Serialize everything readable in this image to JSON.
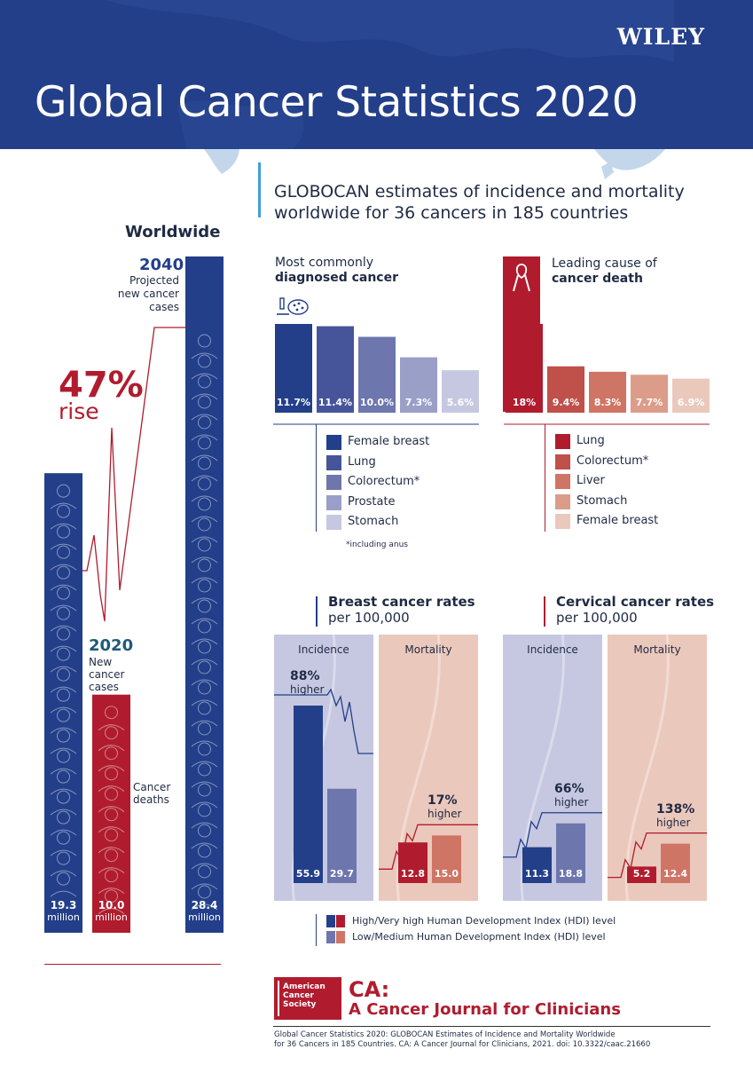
{
  "header": {
    "brand": "WILEY",
    "title": "Global Cancer Statistics 2020"
  },
  "subtitle": "GLOBOCAN estimates of incidence and mortality worldwide for 36 cancers in 185 countries",
  "worldwide": {
    "heading": "Worldwide",
    "year_2040": "2040",
    "projected_label": "Projected new cancer cases",
    "rise_pct": "47%",
    "rise_word": "rise",
    "year_2020": "2020",
    "new_cases_label": "New cancer cases",
    "deaths_label": "Cancer deaths",
    "unit": "million",
    "colors": {
      "blue": "#233f8a",
      "red": "#b01c2e"
    }
  },
  "legend_hdi": {
    "high": "High/Very high Human Development Index (HDI) level",
    "low": "Low/Medium Human Development Index (HDI) level"
  },
  "footnote_anus": "*including anus",
  "journal": {
    "society": "American Cancer Society",
    "ca": "CA:",
    "name": "A Cancer Journal for Clinicians",
    "citation_line1": "Global Cancer Statistics 2020: GLOBOCAN Estimates of Incidence and Mortality Worldwide",
    "citation_line2": "for 36 Cancers in 185 Countries. CA: A Cancer Journal for Clinicians, 2021. doi: 10.3322/caac.21660"
  },
  "chart_data": [
    {
      "type": "bar",
      "title": "Worldwide",
      "categories": [
        "2020 New cancer cases",
        "Cancer deaths",
        "2040 Projected new cancer cases"
      ],
      "values": [
        19.3,
        10.0,
        28.4
      ],
      "value_labels": [
        "19.3",
        "10.0",
        "28.4"
      ],
      "unit": "million",
      "annotation": "47% rise"
    },
    {
      "type": "bar",
      "title_line1": "Most commonly",
      "title_line2": "diagnosed cancer",
      "categories": [
        "Female breast",
        "Lung",
        "Colorectum*",
        "Prostate",
        "Stomach"
      ],
      "values": [
        11.7,
        11.4,
        10.0,
        7.3,
        5.6
      ],
      "value_labels": [
        "11.7%",
        "11.4%",
        "10.0%",
        "7.3%",
        "5.6%"
      ],
      "colors": [
        "#233f8a",
        "#46559a",
        "#6d76ad",
        "#9a9fc8",
        "#c6c8e1"
      ]
    },
    {
      "type": "bar",
      "title_line1": "Leading cause of",
      "title_line2": "cancer death",
      "categories": [
        "Lung",
        "Colorectum*",
        "Liver",
        "Stomach",
        "Female breast"
      ],
      "values": [
        18,
        9.4,
        8.3,
        7.7,
        6.9
      ],
      "value_labels": [
        "18%",
        "9.4%",
        "8.3%",
        "7.7%",
        "6.9%"
      ],
      "colors": [
        "#b01c2e",
        "#c0504a",
        "#cf7565",
        "#dc9c8a",
        "#ebc8bc"
      ]
    },
    {
      "type": "bar",
      "title_line1": "Breast cancer rates",
      "title_line2": "per 100,000",
      "panels": [
        {
          "label": "Incidence",
          "series": [
            "High/Very high HDI",
            "Low/Medium HDI"
          ],
          "values": [
            55.9,
            29.7
          ],
          "value_labels": [
            "55.9",
            "29.7"
          ],
          "diff_pct": "88%",
          "diff_word": "higher"
        },
        {
          "label": "Mortality",
          "series": [
            "High/Very high HDI",
            "Low/Medium HDI"
          ],
          "values": [
            12.8,
            15.0
          ],
          "value_labels": [
            "12.8",
            "15.0"
          ],
          "diff_pct": "17%",
          "diff_word": "higher"
        }
      ]
    },
    {
      "type": "bar",
      "title_line1": "Cervical cancer rates",
      "title_line2": "per 100,000",
      "panels": [
        {
          "label": "Incidence",
          "series": [
            "High/Very high HDI",
            "Low/Medium HDI"
          ],
          "values": [
            11.3,
            18.8
          ],
          "value_labels": [
            "11.3",
            "18.8"
          ],
          "diff_pct": "66%",
          "diff_word": "higher"
        },
        {
          "label": "Mortality",
          "series": [
            "High/Very high HDI",
            "Low/Medium HDI"
          ],
          "values": [
            5.2,
            12.4
          ],
          "value_labels": [
            "5.2",
            "12.4"
          ],
          "diff_pct": "138%",
          "diff_word": "higher"
        }
      ]
    }
  ]
}
